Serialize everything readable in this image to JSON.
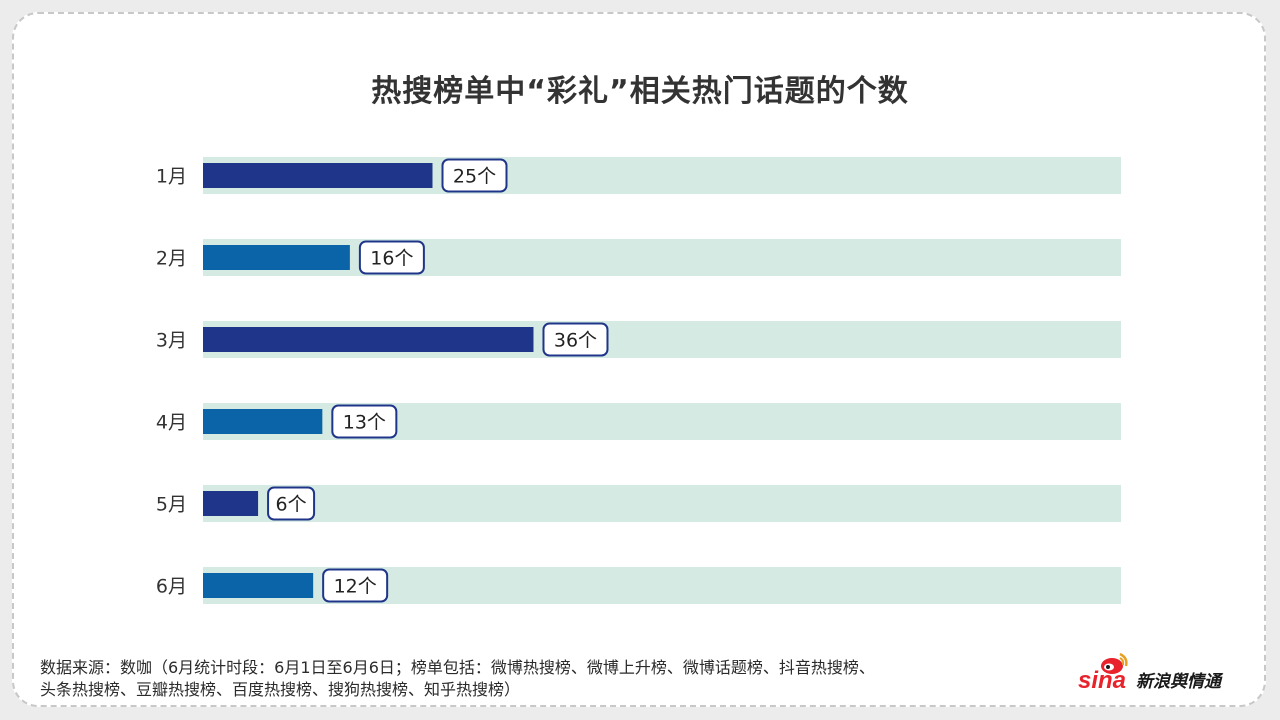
{
  "title": "热搜榜单中“彩礼”相关热门话题的个数",
  "footer": {
    "line1": "数据来源：数咖（6月统计时段：6月1日至6月6日；榜单包括：微博热搜榜、微博上升榜、微博话题榜、抖音热搜榜、",
    "line2": "头条热搜榜、豆瓣热搜榜、百度热搜榜、搜狗热搜榜、知乎热搜榜）"
  },
  "brand": {
    "logo_text": "sina",
    "name": "新浪舆情通"
  },
  "colors": {
    "track": "#d5eae2",
    "bar_dark": "#1f3589",
    "bar_light": "#0b64a8",
    "label_border": "#1f3589"
  },
  "chart_data": {
    "type": "bar",
    "orientation": "horizontal",
    "categories": [
      "1月",
      "2月",
      "3月",
      "4月",
      "5月",
      "6月"
    ],
    "values": [
      25,
      16,
      36,
      13,
      6,
      12
    ],
    "data_labels": [
      "25个",
      "16个",
      "36个",
      "13个",
      "6个",
      "12个"
    ],
    "bar_colors": [
      "#1f3589",
      "#0b64a8",
      "#1f3589",
      "#0b64a8",
      "#1f3589",
      "#0b64a8"
    ],
    "xlim": [
      0,
      100
    ],
    "title": "热搜榜单中“彩礼”相关热门话题的个数",
    "xlabel": "",
    "ylabel": "",
    "grid": false
  }
}
